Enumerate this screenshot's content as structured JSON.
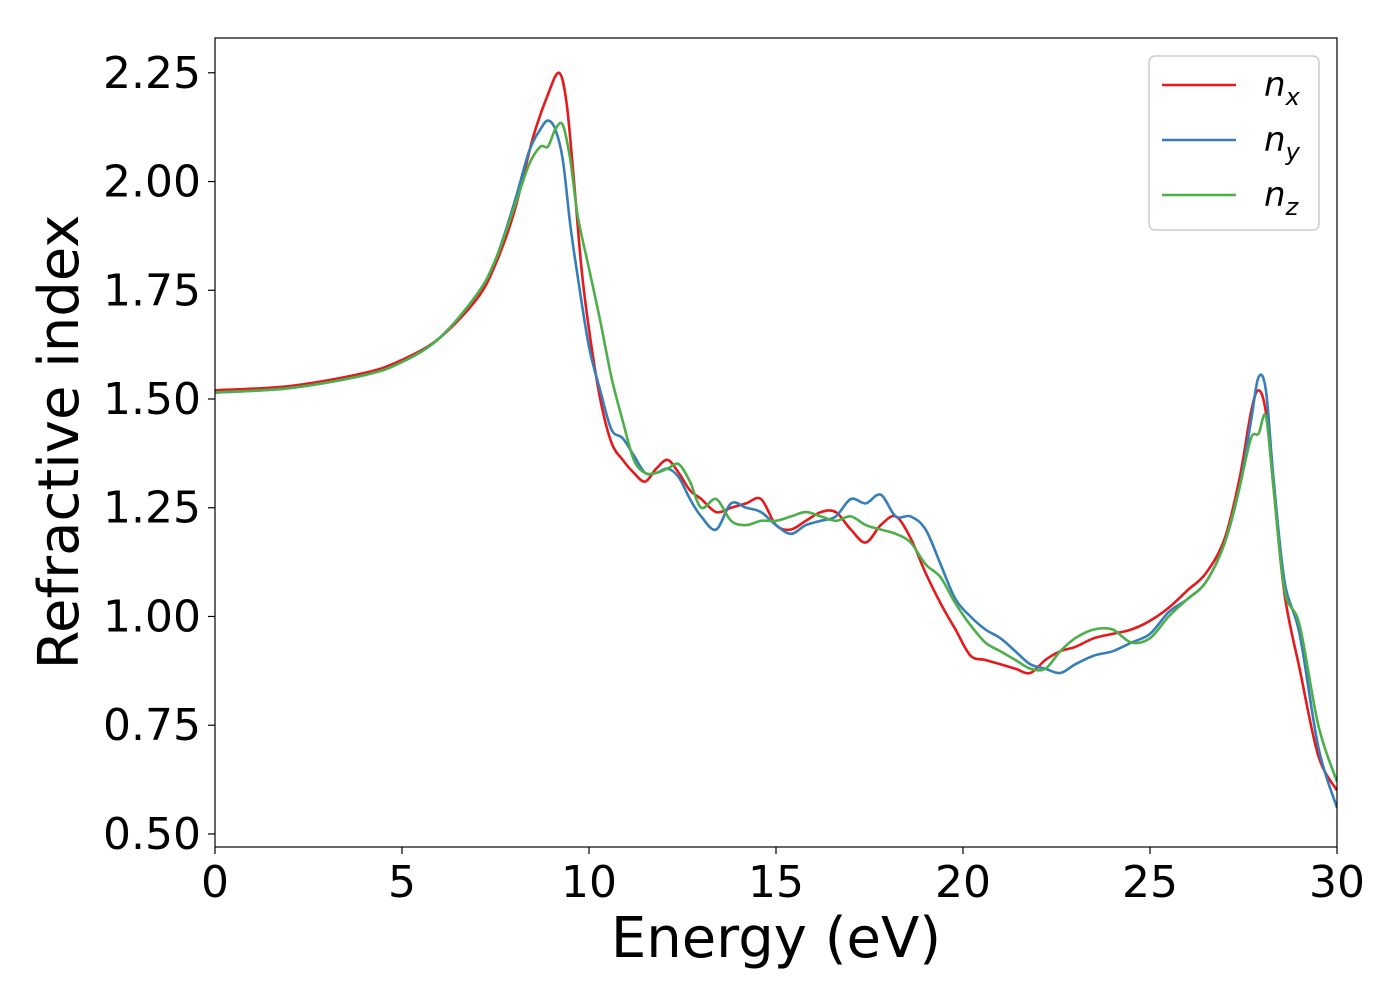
{
  "chart_data": {
    "type": "line",
    "xlabel": "Energy (eV)",
    "ylabel": "Refractive index",
    "xlim": [
      0,
      30
    ],
    "ylim": [
      0.47,
      2.33
    ],
    "xticks": [
      0,
      5,
      10,
      15,
      20,
      25,
      30
    ],
    "xtick_labels": [
      "0",
      "5",
      "10",
      "15",
      "20",
      "25",
      "30"
    ],
    "yticks": [
      0.5,
      0.75,
      1.0,
      1.25,
      1.5,
      1.75,
      2.0,
      2.25
    ],
    "ytick_labels": [
      "0.50",
      "0.75",
      "1.00",
      "1.25",
      "1.50",
      "1.75",
      "2.00",
      "2.25"
    ],
    "grid": false,
    "legend_position": "top-right",
    "series": [
      {
        "name": "n",
        "subscript": "x",
        "color": "#e41a1c",
        "x": [
          0,
          2,
          4,
          5,
          6,
          7,
          7.5,
          8,
          8.5,
          8.9,
          9.2,
          9.4,
          9.6,
          9.8,
          10.0,
          10.3,
          10.6,
          10.9,
          11.2,
          11.5,
          11.8,
          12.1,
          12.4,
          12.7,
          13.0,
          13.4,
          13.8,
          14.2,
          14.6,
          15.0,
          15.4,
          15.8,
          16.2,
          16.6,
          17.0,
          17.4,
          17.8,
          18.2,
          18.6,
          19.0,
          19.4,
          19.8,
          20.2,
          20.6,
          21.0,
          21.4,
          21.8,
          22.2,
          22.6,
          23.0,
          23.5,
          24.0,
          24.5,
          25.0,
          25.5,
          26.0,
          26.5,
          27.0,
          27.4,
          27.7,
          27.9,
          28.1,
          28.3,
          28.6,
          29.0,
          29.5,
          30.0
        ],
        "y": [
          1.52,
          1.53,
          1.56,
          1.59,
          1.64,
          1.73,
          1.81,
          1.93,
          2.1,
          2.2,
          2.25,
          2.18,
          2.0,
          1.8,
          1.66,
          1.5,
          1.4,
          1.36,
          1.33,
          1.31,
          1.34,
          1.36,
          1.33,
          1.29,
          1.27,
          1.24,
          1.25,
          1.26,
          1.27,
          1.21,
          1.2,
          1.22,
          1.24,
          1.24,
          1.2,
          1.17,
          1.21,
          1.23,
          1.18,
          1.1,
          1.03,
          0.97,
          0.91,
          0.9,
          0.89,
          0.88,
          0.87,
          0.9,
          0.92,
          0.93,
          0.95,
          0.96,
          0.97,
          0.99,
          1.02,
          1.06,
          1.1,
          1.18,
          1.32,
          1.47,
          1.52,
          1.47,
          1.3,
          1.05,
          0.88,
          0.68,
          0.6
        ]
      },
      {
        "name": "n",
        "subscript": "y",
        "color": "#377eb8",
        "x": [
          0,
          2,
          4,
          5,
          6,
          7,
          7.5,
          8,
          8.4,
          8.7,
          8.9,
          9.1,
          9.3,
          9.5,
          9.7,
          10.0,
          10.3,
          10.6,
          10.9,
          11.2,
          11.5,
          11.8,
          12.1,
          12.4,
          12.7,
          13.0,
          13.4,
          13.8,
          14.2,
          14.6,
          15.0,
          15.4,
          15.8,
          16.2,
          16.6,
          17.0,
          17.4,
          17.8,
          18.2,
          18.6,
          19.0,
          19.4,
          19.8,
          20.2,
          20.6,
          21.0,
          21.4,
          21.8,
          22.2,
          22.6,
          23.0,
          23.5,
          24.0,
          24.5,
          25.0,
          25.5,
          26.0,
          26.5,
          27.0,
          27.4,
          27.7,
          27.9,
          28.1,
          28.3,
          28.6,
          29.0,
          29.5,
          30.0
        ],
        "y": [
          1.515,
          1.525,
          1.555,
          1.585,
          1.64,
          1.74,
          1.82,
          1.95,
          2.07,
          2.12,
          2.14,
          2.12,
          2.05,
          1.9,
          1.78,
          1.62,
          1.52,
          1.43,
          1.41,
          1.37,
          1.33,
          1.33,
          1.34,
          1.32,
          1.27,
          1.23,
          1.2,
          1.26,
          1.25,
          1.24,
          1.21,
          1.19,
          1.21,
          1.22,
          1.23,
          1.27,
          1.26,
          1.28,
          1.23,
          1.23,
          1.2,
          1.12,
          1.04,
          1.0,
          0.97,
          0.95,
          0.92,
          0.89,
          0.88,
          0.87,
          0.89,
          0.91,
          0.92,
          0.94,
          0.96,
          1.01,
          1.04,
          1.08,
          1.17,
          1.3,
          1.45,
          1.55,
          1.52,
          1.32,
          1.08,
          0.96,
          0.7,
          0.56
        ]
      },
      {
        "name": "n",
        "subscript": "z",
        "color": "#4daf4a",
        "x": [
          0,
          2,
          4,
          5,
          6,
          7,
          7.5,
          8,
          8.4,
          8.7,
          8.9,
          9.1,
          9.3,
          9.5,
          9.7,
          10.0,
          10.3,
          10.6,
          10.9,
          11.2,
          11.5,
          11.8,
          12.1,
          12.4,
          12.7,
          13.0,
          13.4,
          13.8,
          14.2,
          14.6,
          15.0,
          15.4,
          15.8,
          16.2,
          16.6,
          17.0,
          17.4,
          17.8,
          18.2,
          18.6,
          19.0,
          19.4,
          19.8,
          20.2,
          20.6,
          21.0,
          21.4,
          21.8,
          22.2,
          22.6,
          23.0,
          23.5,
          24.0,
          24.5,
          25.0,
          25.5,
          26.0,
          26.5,
          27.0,
          27.4,
          27.7,
          27.9,
          28.1,
          28.3,
          28.6,
          29.0,
          29.5,
          30.0
        ],
        "y": [
          1.515,
          1.525,
          1.555,
          1.585,
          1.64,
          1.74,
          1.82,
          1.94,
          2.04,
          2.08,
          2.08,
          2.12,
          2.13,
          2.05,
          1.92,
          1.8,
          1.68,
          1.55,
          1.45,
          1.36,
          1.33,
          1.33,
          1.34,
          1.35,
          1.31,
          1.25,
          1.27,
          1.22,
          1.21,
          1.22,
          1.22,
          1.23,
          1.24,
          1.23,
          1.22,
          1.23,
          1.21,
          1.2,
          1.19,
          1.17,
          1.12,
          1.09,
          1.03,
          0.98,
          0.94,
          0.92,
          0.9,
          0.88,
          0.88,
          0.92,
          0.95,
          0.97,
          0.97,
          0.94,
          0.95,
          1.0,
          1.04,
          1.08,
          1.17,
          1.3,
          1.41,
          1.42,
          1.46,
          1.3,
          1.06,
          0.98,
          0.75,
          0.62
        ]
      }
    ]
  }
}
